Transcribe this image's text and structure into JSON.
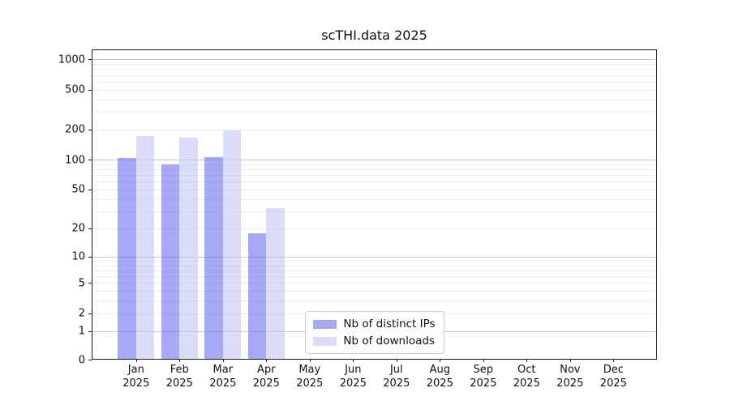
{
  "window": {
    "background": "#ffffff"
  },
  "chart_data": {
    "type": "bar",
    "title": "scTHI.data 2025",
    "categories": [
      "Jan",
      "Feb",
      "Mar",
      "Apr",
      "May",
      "Jun",
      "Jul",
      "Aug",
      "Sep",
      "Oct",
      "Nov",
      "Dec"
    ],
    "x_tick_year": "2025",
    "series": [
      {
        "name": "Nb of distinct IPs",
        "color": "rgba(110,110,243,0.6)",
        "color_solid": "#a8a8f8",
        "values": [
          100,
          87,
          103,
          17,
          0,
          0,
          0,
          0,
          0,
          0,
          0,
          0
        ]
      },
      {
        "name": "Nb of downloads",
        "color": "rgba(191,191,246,0.55)",
        "color_solid": "#dcdcf8",
        "values": [
          165,
          160,
          190,
          31,
          0,
          0,
          0,
          0,
          0,
          0,
          0,
          0
        ]
      }
    ],
    "yscale": "log1p",
    "y_ticks": [
      0,
      1,
      2,
      5,
      10,
      20,
      50,
      100,
      200,
      500,
      1000
    ],
    "ylim": [
      0,
      1200
    ],
    "grid": "on",
    "legend_position": "lower center",
    "colors": {
      "grid_major": "#c6c6c6",
      "grid_minor": "#ededed",
      "axis": "#1a1a1a",
      "text": "#111111",
      "legend_border": "#cccccc"
    }
  }
}
